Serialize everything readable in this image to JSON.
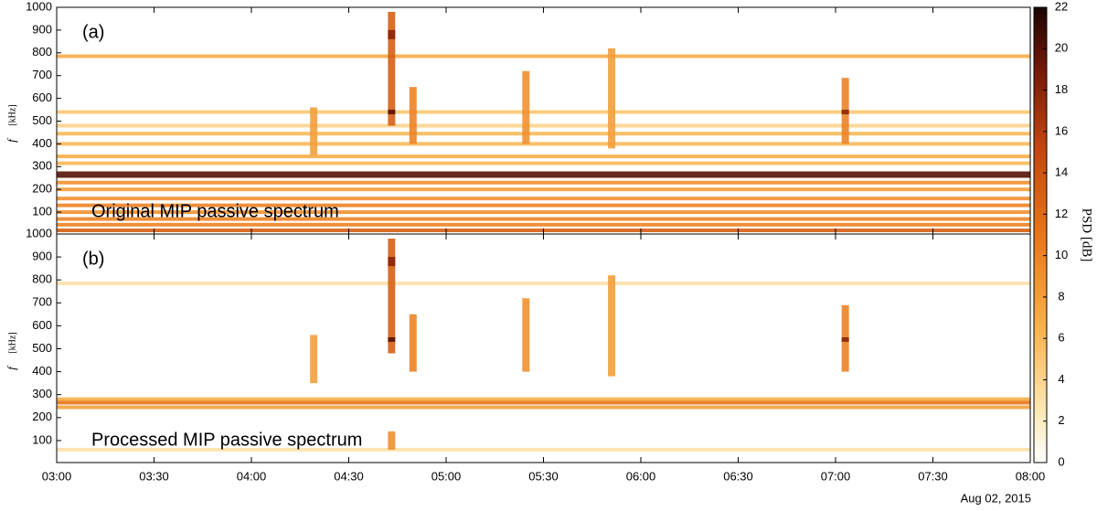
{
  "chart_data": [
    {
      "type": "spectrogram",
      "panel_label": "(a)",
      "annotation": "Original MIP passive spectrum",
      "ylabel": "f",
      "yunit": "[kHz]",
      "ylim": [
        4,
        1000
      ],
      "yticks": [
        100,
        200,
        300,
        400,
        500,
        600,
        700,
        800,
        900,
        1000
      ],
      "xlim": [
        3,
        8
      ],
      "xticks": [
        {
          "value": 3,
          "label": "03:00"
        },
        {
          "value": 3.5,
          "label": "03:30"
        },
        {
          "value": 4,
          "label": "04:00"
        },
        {
          "value": 4.5,
          "label": "04:30"
        },
        {
          "value": 5,
          "label": "05:00"
        },
        {
          "value": 5.5,
          "label": "05:30"
        },
        {
          "value": 6,
          "label": "06:00"
        },
        {
          "value": 6.5,
          "label": "06:30"
        },
        {
          "value": 7,
          "label": "07:00"
        },
        {
          "value": 7.5,
          "label": "07:30"
        },
        {
          "value": 8,
          "label": "08:00"
        }
      ],
      "bands": [
        {
          "f": 785,
          "psd": 7
        },
        {
          "f": 540,
          "psd": 5
        },
        {
          "f": 480,
          "psd": 4
        },
        {
          "f": 445,
          "psd": 6
        },
        {
          "f": 400,
          "psd": 6
        },
        {
          "f": 345,
          "psd": 7
        },
        {
          "f": 315,
          "psd": 6
        },
        {
          "f": 265,
          "psd": 20
        },
        {
          "f": 230,
          "psd": 9
        },
        {
          "f": 200,
          "psd": 8
        },
        {
          "f": 160,
          "psd": 9
        },
        {
          "f": 130,
          "psd": 10
        },
        {
          "f": 100,
          "psd": 9
        },
        {
          "f": 70,
          "psd": 10
        },
        {
          "f": 45,
          "psd": 10
        },
        {
          "f": 20,
          "psd": 13
        }
      ],
      "bursts": [
        {
          "t": 4.72,
          "f_low": 480,
          "f_high": 980,
          "psd": 13
        },
        {
          "t": 4.72,
          "f_low": 530,
          "f_high": 550,
          "psd": 20
        },
        {
          "t": 4.72,
          "f_low": 860,
          "f_high": 900,
          "psd": 18
        },
        {
          "t": 4.83,
          "f_low": 400,
          "f_high": 650,
          "psd": 10
        },
        {
          "t": 4.32,
          "f_low": 350,
          "f_high": 560,
          "psd": 8
        },
        {
          "t": 5.41,
          "f_low": 400,
          "f_high": 720,
          "psd": 9
        },
        {
          "t": 5.85,
          "f_low": 380,
          "f_high": 820,
          "psd": 8
        },
        {
          "t": 7.05,
          "f_low": 400,
          "f_high": 690,
          "psd": 10
        },
        {
          "t": 7.05,
          "f_low": 530,
          "f_high": 550,
          "psd": 18
        }
      ]
    },
    {
      "type": "spectrogram",
      "panel_label": "(b)",
      "annotation": "Processed MIP passive spectrum",
      "ylabel": "f",
      "yunit": "[kHz]",
      "ylim": [
        4,
        1000
      ],
      "yticks": [
        100,
        200,
        300,
        400,
        500,
        600,
        700,
        800,
        900,
        1000
      ],
      "xlim": [
        3,
        8
      ],
      "xticks": [
        {
          "value": 3,
          "label": "03:00"
        },
        {
          "value": 3.5,
          "label": "03:30"
        },
        {
          "value": 4,
          "label": "04:00"
        },
        {
          "value": 4.5,
          "label": "04:30"
        },
        {
          "value": 5,
          "label": "05:00"
        },
        {
          "value": 5.5,
          "label": "05:30"
        },
        {
          "value": 6,
          "label": "06:00"
        },
        {
          "value": 6.5,
          "label": "06:30"
        },
        {
          "value": 7,
          "label": "07:00"
        },
        {
          "value": 7.5,
          "label": "07:30"
        },
        {
          "value": 8,
          "label": "08:00"
        }
      ],
      "date": "Aug 02, 2015",
      "bands": [
        {
          "f": 785,
          "psd": 3
        },
        {
          "f": 280,
          "psd": 7
        },
        {
          "f": 265,
          "psd": 11
        },
        {
          "f": 245,
          "psd": 8
        },
        {
          "f": 60,
          "psd": 3
        }
      ],
      "bursts": [
        {
          "t": 4.72,
          "f_low": 480,
          "f_high": 980,
          "psd": 13
        },
        {
          "t": 4.72,
          "f_low": 530,
          "f_high": 550,
          "psd": 20
        },
        {
          "t": 4.72,
          "f_low": 860,
          "f_high": 900,
          "psd": 18
        },
        {
          "t": 4.83,
          "f_low": 400,
          "f_high": 650,
          "psd": 10
        },
        {
          "t": 4.32,
          "f_low": 350,
          "f_high": 560,
          "psd": 8
        },
        {
          "t": 5.41,
          "f_low": 400,
          "f_high": 720,
          "psd": 9
        },
        {
          "t": 5.85,
          "f_low": 380,
          "f_high": 820,
          "psd": 8
        },
        {
          "t": 7.05,
          "f_low": 400,
          "f_high": 690,
          "psd": 10
        },
        {
          "t": 7.05,
          "f_low": 530,
          "f_high": 550,
          "psd": 18
        },
        {
          "t": 4.72,
          "f_low": 60,
          "f_high": 140,
          "psd": 9
        }
      ]
    }
  ],
  "colorbar": {
    "label": "PSD [dB]",
    "lim": [
      0,
      22
    ],
    "ticks": [
      0,
      2,
      4,
      6,
      8,
      10,
      12,
      14,
      16,
      18,
      20,
      22
    ]
  }
}
